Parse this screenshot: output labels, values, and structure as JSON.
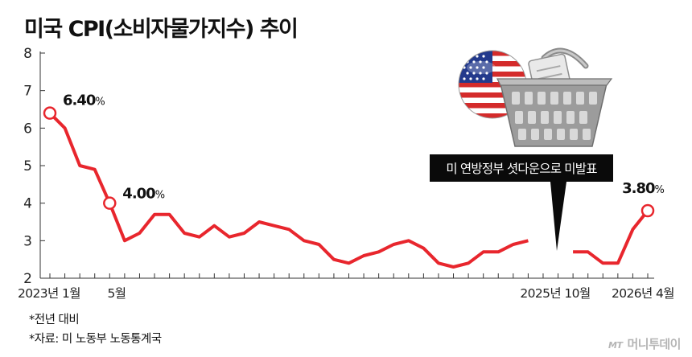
{
  "chart_data": {
    "type": "line",
    "title": "미국 CPI(소비자물가지수) 추이",
    "series": [
      {
        "values": [
          6.4,
          6.0,
          5.0,
          4.9,
          4.0,
          3.0,
          3.2,
          3.7,
          3.7,
          3.2,
          3.1,
          3.4,
          3.1,
          3.2,
          3.5,
          3.4,
          3.3,
          3.0,
          2.9,
          2.5,
          2.4,
          2.6,
          2.7,
          2.9,
          3.0,
          2.8,
          2.4,
          2.3,
          2.4,
          2.7,
          2.7,
          2.9,
          3.0,
          null,
          null,
          2.7,
          2.7,
          2.4,
          2.4,
          3.3,
          3.8
        ]
      }
    ],
    "x_labels": [
      "2023년 1월",
      "5월",
      "2025년 10월",
      "2026년 4월"
    ],
    "y_ticks": [
      "2",
      "3",
      "4",
      "5",
      "6",
      "7",
      "8"
    ],
    "ylim": [
      2,
      8
    ],
    "grid": false,
    "line_color": "#e8262d",
    "highlights": [
      {
        "point_index": 0,
        "value_text": "6.40",
        "unit": "%"
      },
      {
        "point_index": 4,
        "value_text": "4.00",
        "unit": "%"
      },
      {
        "point_index": 40,
        "value_text": "3.80",
        "unit": "%"
      }
    ],
    "annotation": "미 연방정부 셧다운으로 미발표"
  },
  "footnotes": [
    "*전년 대비",
    "*자료: 미 노동부 노동통계국"
  ],
  "watermark": {
    "mark": "MT",
    "brand": "머니투데이"
  },
  "illustration_icons": [
    "us-flag-icon",
    "shopping-basket-icon"
  ]
}
